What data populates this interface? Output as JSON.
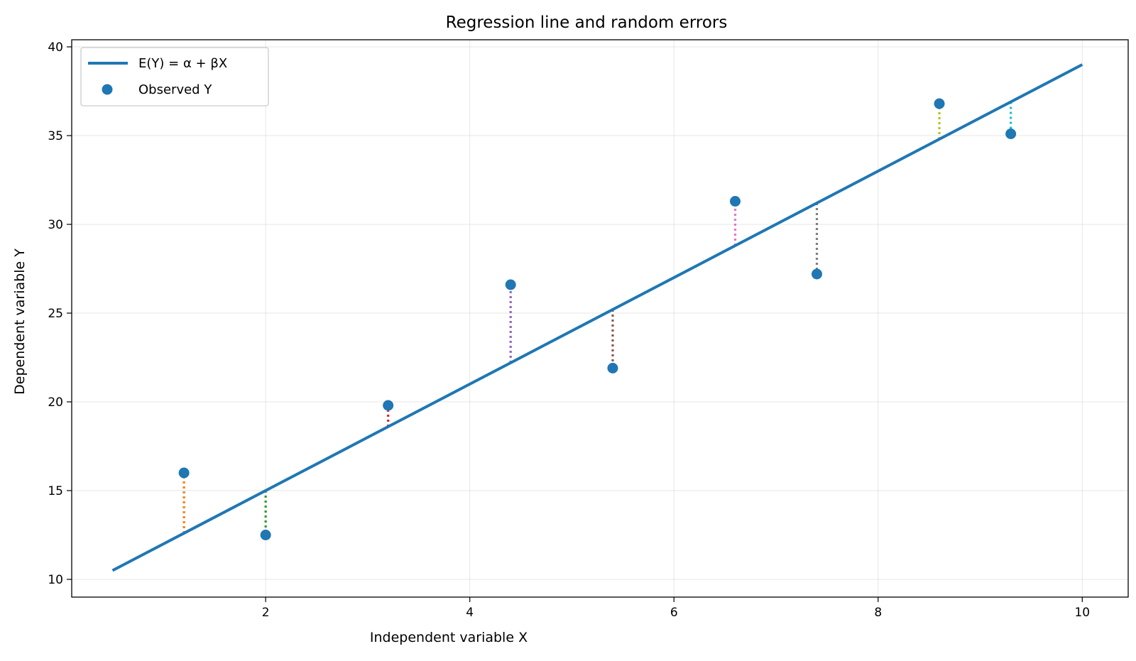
{
  "chart_data": {
    "type": "scatter",
    "title": "Regression line and random errors",
    "xlabel": "Independent variable X",
    "ylabel": "Dependent variable Y",
    "xlim": [
      0.1,
      10.45
    ],
    "ylim": [
      9.0,
      40.4
    ],
    "xticks": [
      2,
      4,
      6,
      8,
      10
    ],
    "yticks": [
      10,
      15,
      20,
      25,
      30,
      35,
      40
    ],
    "grid": true,
    "legend_position": "top-left",
    "line": {
      "name": "E(Y) = α + βX",
      "alpha": 9.0,
      "beta": 3.0,
      "x_range": [
        0.5,
        10.0
      ],
      "color": "#1f77b4"
    },
    "points": {
      "name": "Observed Y",
      "color": "#1f77b4",
      "x": [
        1.2,
        2.0,
        3.2,
        4.4,
        5.4,
        6.6,
        7.4,
        8.6,
        9.3
      ],
      "y": [
        16.0,
        12.5,
        19.8,
        26.6,
        21.9,
        31.3,
        27.2,
        36.8,
        35.1
      ]
    },
    "error_colors": [
      "#ff7f0e",
      "#2ca02c",
      "#d62728",
      "#9467bd",
      "#8c564b",
      "#e377c2",
      "#7f7f7f",
      "#bcbd22",
      "#17becf"
    ]
  }
}
